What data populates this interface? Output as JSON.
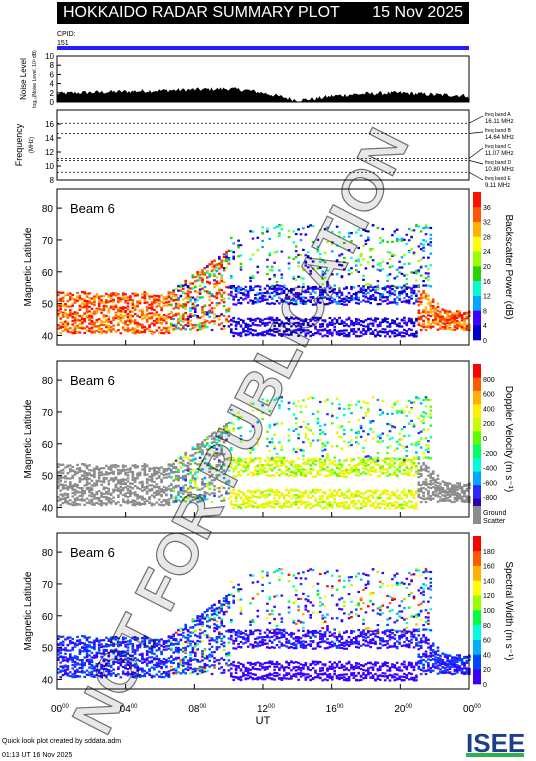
{
  "header": {
    "title": "HOKKAIDO RADAR SUMMARY PLOT",
    "date": "15 Nov 2025"
  },
  "cpid": {
    "label": "CPID:",
    "value": "151"
  },
  "watermark": "NOT FOR PUBLICATION",
  "colors": {
    "cpid_bar": "#1f1fff",
    "noise": "#000000",
    "ground_scatter": "#8c8c8c"
  },
  "chart_data": [
    {
      "type": "area",
      "panel": "noise",
      "ylabel": "Noise Level",
      "ylabel_sub": "log₁₀(Noise Level, 10³ dB)",
      "ylim": [
        0,
        10
      ],
      "yticks": [
        "0",
        "2",
        "4",
        "6",
        "8",
        "10"
      ],
      "x_hours": [
        0,
        1,
        2,
        3,
        4,
        5,
        6,
        7,
        8,
        9,
        10,
        11,
        12,
        13,
        14,
        15,
        16,
        17,
        18,
        19,
        20,
        21,
        22,
        23,
        24
      ],
      "values": [
        1.8,
        2.0,
        2.1,
        2.2,
        2.3,
        2.4,
        2.5,
        2.6,
        2.7,
        2.8,
        2.9,
        2.6,
        2.0,
        1.2,
        0.4,
        0.7,
        1.3,
        1.6,
        1.8,
        1.9,
        2.0,
        1.8,
        1.6,
        1.5,
        1.4
      ]
    },
    {
      "type": "line",
      "panel": "frequency",
      "ylabel": "Frequency",
      "ylabel_sub": "(MHz)",
      "ylim": [
        8,
        18
      ],
      "yticks": [
        "8",
        "10",
        "12",
        "14",
        "16"
      ],
      "bands": [
        {
          "name": "freq band A",
          "mhz": "16.11 MHz",
          "value": 16.11
        },
        {
          "name": "freq band B",
          "mhz": "14.64 MHz",
          "value": 14.64
        },
        {
          "name": "freq band C",
          "mhz": "11.07 MHz",
          "value": 11.07
        },
        {
          "name": "freq band D",
          "mhz": "10.80 MHz",
          "value": 10.8
        },
        {
          "name": "freq band E",
          "mhz": "9.11 MHz",
          "value": 9.11
        }
      ]
    },
    {
      "type": "heatmap",
      "panel": "power",
      "beam": "Beam  6",
      "ylabel": "Magnetic Latitude",
      "ylim": [
        37,
        86
      ],
      "yticks": [
        "40",
        "50",
        "60",
        "70",
        "80"
      ],
      "colorbar_label": "Backscatter Power (dB)",
      "colorbar_ticks": [
        "0",
        "4",
        "8",
        "12",
        "16",
        "20",
        "24",
        "28",
        "32",
        "36"
      ],
      "colorbar_range": [
        0,
        38
      ]
    },
    {
      "type": "heatmap",
      "panel": "velocity",
      "beam": "Beam  6",
      "ylabel": "Magnetic Latitude",
      "ylim": [
        37,
        86
      ],
      "yticks": [
        "40",
        "50",
        "60",
        "70",
        "80"
      ],
      "colorbar_label": "Doppler Velocity (m s⁻¹)",
      "colorbar_ticks": [
        "800",
        "600",
        "400",
        "200",
        "0",
        "-200",
        "-400",
        "-600",
        "-800"
      ],
      "colorbar_range": [
        -900,
        900
      ],
      "ground_label": [
        "Ground",
        "Scatter"
      ]
    },
    {
      "type": "heatmap",
      "panel": "width",
      "beam": "Beam  6",
      "ylabel": "Magnetic Latitude",
      "ylim": [
        37,
        86
      ],
      "yticks": [
        "40",
        "50",
        "60",
        "70",
        "80"
      ],
      "colorbar_label": "Spectral Width (m s⁻¹)",
      "colorbar_ticks": [
        "0",
        "20",
        "40",
        "60",
        "80",
        "100",
        "120",
        "140",
        "160",
        "180"
      ],
      "colorbar_range": [
        0,
        190
      ],
      "xlabel": "UT",
      "xticks": [
        "00",
        "04",
        "08",
        "12",
        "16",
        "20",
        "00"
      ],
      "xtick_sup": "00"
    }
  ],
  "footer": {
    "line1": "Quick look plot created by sddata.adm",
    "line2": "01:13 UT 16 Nov 2025",
    "logo": "ISEE"
  }
}
